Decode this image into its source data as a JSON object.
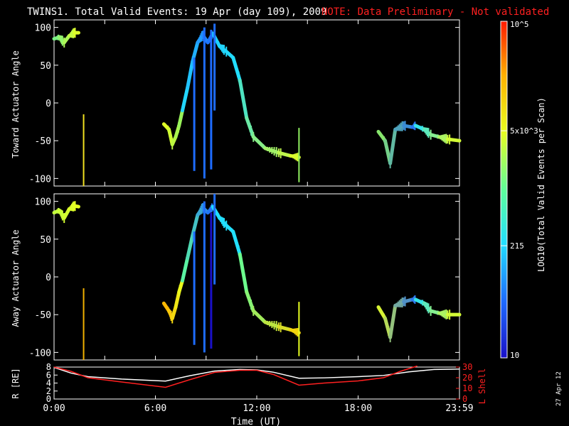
{
  "title": {
    "main": "TWINS1. Total Valid Events: 19 Apr (day 109), 2009",
    "note": "NOTE: Data Preliminary - Not validated",
    "note_color": "#ff2020"
  },
  "stamp": "27 Apr 12",
  "colorbar": {
    "label": "LOG10(Total Valid Events per Scan)",
    "scale": "log",
    "range": [
      10,
      100000
    ],
    "tick_labels": [
      "10",
      "215",
      "5x10^3",
      "10^5"
    ],
    "tick_values": [
      10,
      215,
      5000,
      100000
    ],
    "colormap": [
      "#1a10c8",
      "#1e6cff",
      "#22e0ff",
      "#5fff9a",
      "#e8ff20",
      "#ffb000",
      "#ff1a00"
    ]
  },
  "chart_data": [
    {
      "type": "scatter",
      "ylabel": "Toward Actuator Angle",
      "ylim": [
        -110,
        110
      ],
      "yticks": [
        -100,
        -50,
        0,
        50,
        100
      ],
      "xlim": [
        0,
        24
      ],
      "x_tick_hours": [
        0,
        3,
        6,
        9,
        12,
        15,
        18,
        21,
        24
      ],
      "spikes": [
        {
          "x": 1.75,
          "y0": -110,
          "y1": -15,
          "color": "#f0e020"
        },
        {
          "x": 14.5,
          "y0": -105,
          "y1": -33,
          "color": "#90f060"
        }
      ],
      "segments": [
        {
          "x0": 0.0,
          "x1": 1.45,
          "pts": [
            [
              0.0,
              85
            ],
            [
              0.3,
              87
            ],
            [
              0.6,
              80
            ],
            [
              0.9,
              89
            ],
            [
              1.2,
              93
            ],
            [
              1.45,
              93
            ]
          ],
          "colors": [
            "#70f090",
            "#e8ff20"
          ]
        },
        {
          "x0": 6.5,
          "x1": 7.6,
          "pts": [
            [
              6.5,
              -28
            ],
            [
              6.8,
              -35
            ],
            [
              7.0,
              -55
            ],
            [
              7.2,
              -45
            ],
            [
              7.4,
              -30
            ],
            [
              7.6,
              -10
            ]
          ],
          "colors": [
            "#e8ff20",
            "#90f060"
          ]
        },
        {
          "x0": 7.6,
          "x1": 9.4,
          "pts": [
            [
              7.6,
              -10
            ],
            [
              7.9,
              20
            ],
            [
              8.2,
              55
            ],
            [
              8.5,
              80
            ],
            [
              8.8,
              90
            ],
            [
              9.1,
              80
            ],
            [
              9.4,
              92
            ]
          ],
          "colors": [
            "#22e0ff",
            "#1e6cff"
          ]
        },
        {
          "x0": 9.4,
          "x1": 11.0,
          "pts": [
            [
              9.4,
              92
            ],
            [
              9.8,
              75
            ],
            [
              10.2,
              68
            ],
            [
              10.6,
              60
            ],
            [
              11.0,
              30
            ]
          ],
          "colors": [
            "#1ecfff",
            "#22e0ff"
          ]
        },
        {
          "x0": 11.0,
          "x1": 14.5,
          "pts": [
            [
              11.0,
              30
            ],
            [
              11.4,
              -20
            ],
            [
              11.8,
              -45
            ],
            [
              12.5,
              -60
            ],
            [
              13.3,
              -66
            ],
            [
              14.0,
              -70
            ],
            [
              14.5,
              -72
            ]
          ],
          "colors": [
            "#40e0d0",
            "#e8ff20"
          ]
        },
        {
          "x0": 19.2,
          "x1": 21.4,
          "pts": [
            [
              19.2,
              -38
            ],
            [
              19.6,
              -50
            ],
            [
              19.9,
              -80
            ],
            [
              20.2,
              -35
            ],
            [
              20.7,
              -30
            ],
            [
              21.2,
              -32
            ],
            [
              21.4,
              -30
            ]
          ],
          "colors": [
            "#90f060",
            "#1e6cff"
          ]
        },
        {
          "x0": 21.4,
          "x1": 24.0,
          "pts": [
            [
              21.4,
              -30
            ],
            [
              21.9,
              -35
            ],
            [
              22.3,
              -42
            ],
            [
              22.8,
              -45
            ],
            [
              23.3,
              -48
            ],
            [
              24.0,
              -50
            ]
          ],
          "colors": [
            "#22e0ff",
            "#e8ff20"
          ]
        }
      ],
      "vbars": [
        {
          "x": 8.3,
          "y0": -90,
          "y1": 60,
          "color": "#1e6cff"
        },
        {
          "x": 8.9,
          "y0": -100,
          "y1": 100,
          "color": "#1e6cff"
        },
        {
          "x": 9.3,
          "y0": -88,
          "y1": 97,
          "color": "#1e6cff"
        },
        {
          "x": 9.5,
          "y0": -10,
          "y1": 105,
          "color": "#1e6cff"
        }
      ]
    },
    {
      "type": "scatter",
      "ylabel": "Away Actuator Angle",
      "ylim": [
        -110,
        110
      ],
      "yticks": [
        -100,
        -50,
        0,
        50,
        100
      ],
      "xlim": [
        0,
        24
      ],
      "x_tick_hours": [
        0,
        3,
        6,
        9,
        12,
        15,
        18,
        21,
        24
      ],
      "spikes": [
        {
          "x": 1.75,
          "y0": -110,
          "y1": -15,
          "color": "#f0b000"
        },
        {
          "x": 14.5,
          "y0": -105,
          "y1": -33,
          "color": "#e8ff20"
        }
      ],
      "segments": [
        {
          "x0": 0.0,
          "x1": 1.45,
          "pts": [
            [
              0.0,
              85
            ],
            [
              0.3,
              88
            ],
            [
              0.6,
              78
            ],
            [
              0.9,
              90
            ],
            [
              1.2,
              94
            ],
            [
              1.45,
              93
            ]
          ],
          "colors": [
            "#c0ff40",
            "#e8ff20"
          ]
        },
        {
          "x0": 6.5,
          "x1": 7.6,
          "pts": [
            [
              6.5,
              -35
            ],
            [
              6.8,
              -45
            ],
            [
              7.0,
              -55
            ],
            [
              7.2,
              -40
            ],
            [
              7.4,
              -20
            ],
            [
              7.6,
              -5
            ]
          ],
          "colors": [
            "#ffb000",
            "#e8ff20"
          ]
        },
        {
          "x0": 7.6,
          "x1": 9.4,
          "pts": [
            [
              7.6,
              -5
            ],
            [
              7.9,
              25
            ],
            [
              8.2,
              55
            ],
            [
              8.5,
              82
            ],
            [
              8.8,
              92
            ],
            [
              9.1,
              85
            ],
            [
              9.4,
              93
            ]
          ],
          "colors": [
            "#5fff9a",
            "#1e6cff"
          ]
        },
        {
          "x0": 9.4,
          "x1": 11.0,
          "pts": [
            [
              9.4,
              93
            ],
            [
              9.8,
              78
            ],
            [
              10.2,
              68
            ],
            [
              10.6,
              60
            ],
            [
              11.0,
              30
            ]
          ],
          "colors": [
            "#22e0ff",
            "#22e0ff"
          ]
        },
        {
          "x0": 11.0,
          "x1": 14.5,
          "pts": [
            [
              11.0,
              30
            ],
            [
              11.4,
              -20
            ],
            [
              11.8,
              -45
            ],
            [
              12.5,
              -60
            ],
            [
              13.3,
              -66
            ],
            [
              14.0,
              -70
            ],
            [
              14.5,
              -74
            ]
          ],
          "colors": [
            "#5fff9a",
            "#ffd000"
          ]
        },
        {
          "x0": 19.2,
          "x1": 21.4,
          "pts": [
            [
              19.2,
              -40
            ],
            [
              19.6,
              -55
            ],
            [
              19.9,
              -80
            ],
            [
              20.2,
              -38
            ],
            [
              20.7,
              -33
            ],
            [
              21.2,
              -30
            ],
            [
              21.4,
              -30
            ]
          ],
          "colors": [
            "#e8ff20",
            "#1e6cff"
          ]
        },
        {
          "x0": 21.4,
          "x1": 24.0,
          "pts": [
            [
              21.4,
              -30
            ],
            [
              21.9,
              -35
            ],
            [
              22.3,
              -45
            ],
            [
              22.8,
              -48
            ],
            [
              23.3,
              -50
            ],
            [
              24.0,
              -50
            ]
          ],
          "colors": [
            "#22e0ff",
            "#e8ff20"
          ]
        }
      ],
      "vbars": [
        {
          "x": 8.3,
          "y0": -90,
          "y1": 60,
          "color": "#1e6cff"
        },
        {
          "x": 8.9,
          "y0": -100,
          "y1": 100,
          "color": "#1e6cff"
        },
        {
          "x": 9.3,
          "y0": -95,
          "y1": 85,
          "color": "#1a10c8"
        },
        {
          "x": 9.5,
          "y0": -10,
          "y1": 110,
          "color": "#1e6cff"
        }
      ]
    },
    {
      "type": "line",
      "ylabel": "R [RE]",
      "ylabel_right": "L Shell",
      "xlabel": "Time (UT)",
      "xlim": [
        0,
        24
      ],
      "x_tick_labels": [
        "0:00",
        "6:00",
        "12:00",
        "18:00",
        "23:59"
      ],
      "x_tick_hours": [
        0,
        6,
        12,
        18,
        24
      ],
      "ylim": [
        0,
        8
      ],
      "yticks": [
        0,
        2,
        4,
        6,
        8
      ],
      "ylim_right": [
        0,
        30
      ],
      "yticks_right": [
        0,
        10,
        20,
        30
      ],
      "series": [
        {
          "axis": "left",
          "color": "#ffffff",
          "x": [
            0,
            1,
            2,
            4,
            6.6,
            8,
            9.5,
            11,
            12,
            13,
            14.5,
            16,
            18,
            19.5,
            21,
            22.5,
            24
          ],
          "y": [
            7.9,
            6.5,
            5.6,
            5.0,
            4.5,
            5.8,
            7.0,
            7.4,
            7.3,
            6.7,
            5.2,
            5.3,
            5.6,
            5.9,
            6.8,
            7.4,
            7.5
          ]
        },
        {
          "axis": "right",
          "color": "#ff2020",
          "x": [
            0,
            1,
            2,
            4,
            6.6,
            8,
            9.5,
            11,
            12,
            13,
            14.5,
            16,
            18,
            19.5,
            20.5,
            21.5
          ],
          "y": [
            30,
            26,
            20,
            16,
            11,
            18,
            25,
            27,
            27,
            23,
            13,
            15,
            17,
            20,
            26,
            31
          ]
        }
      ]
    }
  ]
}
